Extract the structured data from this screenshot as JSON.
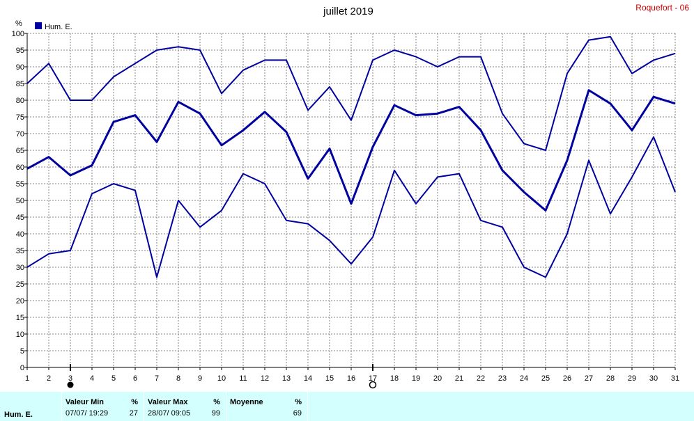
{
  "chart_data": {
    "type": "line",
    "title": "juillet 2019",
    "station": "Roquefort - 06",
    "ylabel": "%",
    "legend": "Hum. E.",
    "ylim": [
      0,
      100
    ],
    "yticks": [
      0,
      5,
      10,
      15,
      20,
      25,
      30,
      35,
      40,
      45,
      50,
      55,
      60,
      65,
      70,
      75,
      80,
      85,
      90,
      95,
      100
    ],
    "x": [
      1,
      2,
      3,
      4,
      5,
      6,
      7,
      8,
      9,
      10,
      11,
      12,
      13,
      14,
      15,
      16,
      17,
      18,
      19,
      20,
      21,
      22,
      23,
      24,
      25,
      26,
      27,
      28,
      29,
      30,
      31
    ],
    "series": [
      {
        "name": "Hum. E.",
        "role": "max",
        "values": [
          85,
          91,
          80,
          80,
          87,
          91,
          95,
          96,
          95,
          82,
          89,
          92,
          92,
          77,
          84,
          74,
          92,
          95,
          93,
          90,
          93,
          93,
          76,
          67,
          65,
          88,
          98,
          99,
          88,
          92,
          94
        ]
      },
      {
        "name": "Hum. E.",
        "role": "mean",
        "values": [
          59.5,
          63,
          57.5,
          60.5,
          73.5,
          75.5,
          67.5,
          79.5,
          76,
          66.5,
          71,
          76.5,
          70.5,
          56.5,
          65.5,
          49,
          66,
          78.5,
          75.5,
          76,
          78,
          71,
          59,
          52.5,
          47,
          62,
          83,
          79,
          71,
          81,
          79
        ]
      },
      {
        "name": "Hum. E.",
        "role": "min",
        "values": [
          30,
          34,
          35,
          52,
          55,
          53,
          27,
          50,
          42,
          47,
          58,
          55,
          44,
          43,
          38,
          31,
          39,
          59,
          49,
          57,
          58,
          44,
          42,
          30,
          27,
          40,
          62,
          46,
          57,
          69,
          52.5
        ]
      }
    ],
    "markers": {
      "filled_circle_day": 3,
      "open_circle_day": 17
    },
    "colors": {
      "series": "#0000a0",
      "grid": "#808080",
      "station": "#cc0000",
      "footer_bg": "#d4ffff"
    },
    "grid": true
  },
  "summary": {
    "row_label": "Hum. E.",
    "unit": "%",
    "min": {
      "label": "Valeur Min",
      "when": "07/07/  19:29",
      "value": "27"
    },
    "max": {
      "label": "Valeur Max",
      "when": "28/07/  09:05",
      "value": "99"
    },
    "mean": {
      "label": "Moyenne",
      "value": "69"
    }
  }
}
